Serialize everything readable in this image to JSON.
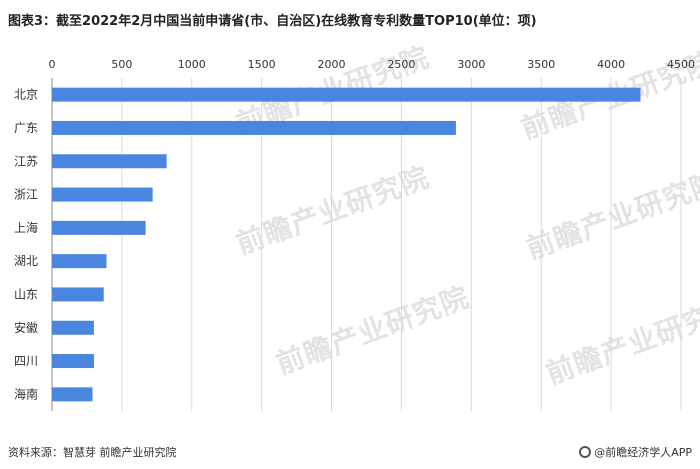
{
  "title": "图表3：截至2022年2月中国当前申请省(市、自治区)在线教育专利数量TOP10(单位：项)",
  "source": "资料来源：智慧芽 前瞻产业研究院",
  "brand": "@前瞻经济学人APP",
  "watermark": "前瞻产业研究院",
  "colors": {
    "bar": "#4a86e0",
    "grid": "#d9d9d9",
    "axis": "#888888"
  },
  "chart_data": {
    "type": "bar",
    "orientation": "horizontal",
    "categories": [
      "北京",
      "广东",
      "江苏",
      "浙江",
      "上海",
      "湖北",
      "山东",
      "安徽",
      "四川",
      "海南"
    ],
    "values": [
      4210,
      2890,
      820,
      720,
      670,
      390,
      370,
      300,
      300,
      290
    ],
    "xlim": [
      0,
      4500
    ],
    "xticks": [
      0,
      500,
      1000,
      1500,
      2000,
      2500,
      3000,
      3500,
      4000,
      4500
    ],
    "xaxis_position": "top",
    "grid": true,
    "legend": "none"
  }
}
